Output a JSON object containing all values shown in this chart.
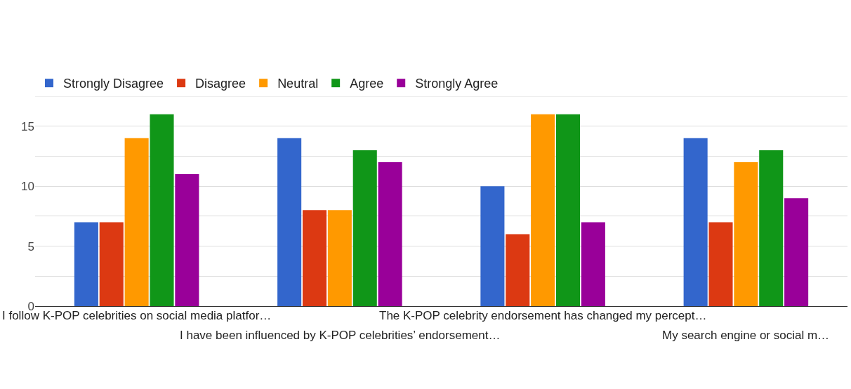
{
  "chart_data": {
    "type": "bar",
    "categories": [
      "I follow K-POP celebrities on social media platfor…",
      "I have been influenced by K-POP celebrities’ endorsement…",
      "The K-POP celebrity endorsement has changed my percept…",
      "My search engine or social m…"
    ],
    "series": [
      {
        "name": "Strongly Disagree",
        "color": "#3366cc",
        "values": [
          7,
          14,
          10,
          14
        ]
      },
      {
        "name": "Disagree",
        "color": "#dc3912",
        "values": [
          7,
          8,
          6,
          7
        ]
      },
      {
        "name": "Neutral",
        "color": "#ff9900",
        "values": [
          14,
          8,
          16,
          12
        ]
      },
      {
        "name": "Agree",
        "color": "#109618",
        "values": [
          16,
          13,
          16,
          13
        ]
      },
      {
        "name": "Strongly Agree",
        "color": "#990099",
        "values": [
          11,
          12,
          7,
          9
        ]
      }
    ],
    "ylim": [
      0,
      17.5
    ],
    "yticks": [
      0,
      {
        "value": 2.5,
        "label": null
      },
      5,
      {
        "value": 7.5,
        "label": null
      },
      10,
      {
        "value": 12.5,
        "label": null
      },
      15,
      {
        "value": 17.5,
        "label": null
      }
    ],
    "grid": "y",
    "legend": "top"
  }
}
